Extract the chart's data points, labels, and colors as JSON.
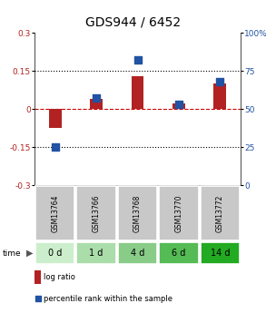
{
  "title": "GDS944 / 6452",
  "samples": [
    "GSM13764",
    "GSM13766",
    "GSM13768",
    "GSM13770",
    "GSM13772"
  ],
  "time_labels": [
    "0 d",
    "1 d",
    "4 d",
    "6 d",
    "14 d"
  ],
  "log_ratios": [
    -0.075,
    0.04,
    0.13,
    0.02,
    0.1
  ],
  "percentile_ranks": [
    25,
    57,
    82,
    53,
    68
  ],
  "ylim_left": [
    -0.3,
    0.3
  ],
  "ylim_right": [
    0,
    100
  ],
  "yticks_left": [
    -0.3,
    -0.15,
    0,
    0.15,
    0.3
  ],
  "yticks_right": [
    0,
    25,
    50,
    75,
    100
  ],
  "hlines": [
    0.15,
    -0.15
  ],
  "bar_color": "#b22222",
  "dot_color": "#2152a3",
  "bar_width": 0.3,
  "dot_size": 40,
  "plot_bg": "#ffffff",
  "sample_label_bg": "#c8c8c8",
  "time_label_bgs": [
    "#cceecc",
    "#aaddaa",
    "#88cc88",
    "#55bb55",
    "#22aa22"
  ],
  "zero_line_color": "#cc0000",
  "title_fontsize": 10,
  "tick_fontsize": 6.5,
  "legend_fontsize": 6
}
